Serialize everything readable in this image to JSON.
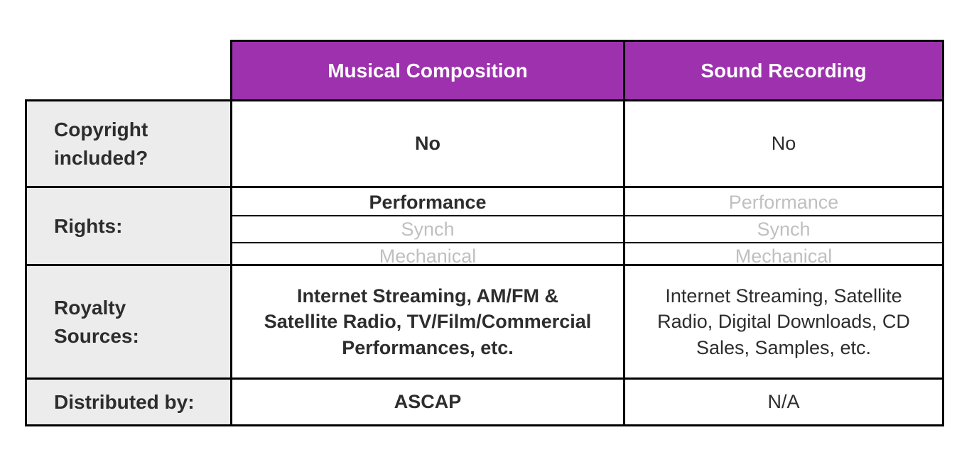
{
  "colors": {
    "header_bg": "#9D31AE",
    "header_text": "#FFFFFF",
    "label_bg": "#ECECEC",
    "border": "#000000",
    "primary_text": "#2D2D2D",
    "muted_text": "#C0C0C0",
    "page_bg": "#FFFFFF"
  },
  "table": {
    "column_headers": {
      "musical": "Musical Composition",
      "sound": "Sound Recording"
    },
    "rows": {
      "copyright": {
        "label": "Copyright\nincluded?",
        "musical": "No",
        "sound": "No"
      },
      "rights": {
        "label": "Rights:",
        "musical": [
          "Performance",
          "Synch",
          "Mechanical"
        ],
        "sound": [
          "Performance",
          "Synch",
          "Mechanical"
        ]
      },
      "royalty": {
        "label": "Royalty\nSources:",
        "musical": "Internet Streaming, AM/FM &\nSatellite Radio, TV/Film/Commercial\nPerformances, etc.",
        "sound": "Internet Streaming, Satellite\nRadio, Digital Downloads, CD\nSales, Samples, etc."
      },
      "distributed": {
        "label": "Distributed by:",
        "musical": "ASCAP",
        "sound": "N/A"
      }
    }
  }
}
